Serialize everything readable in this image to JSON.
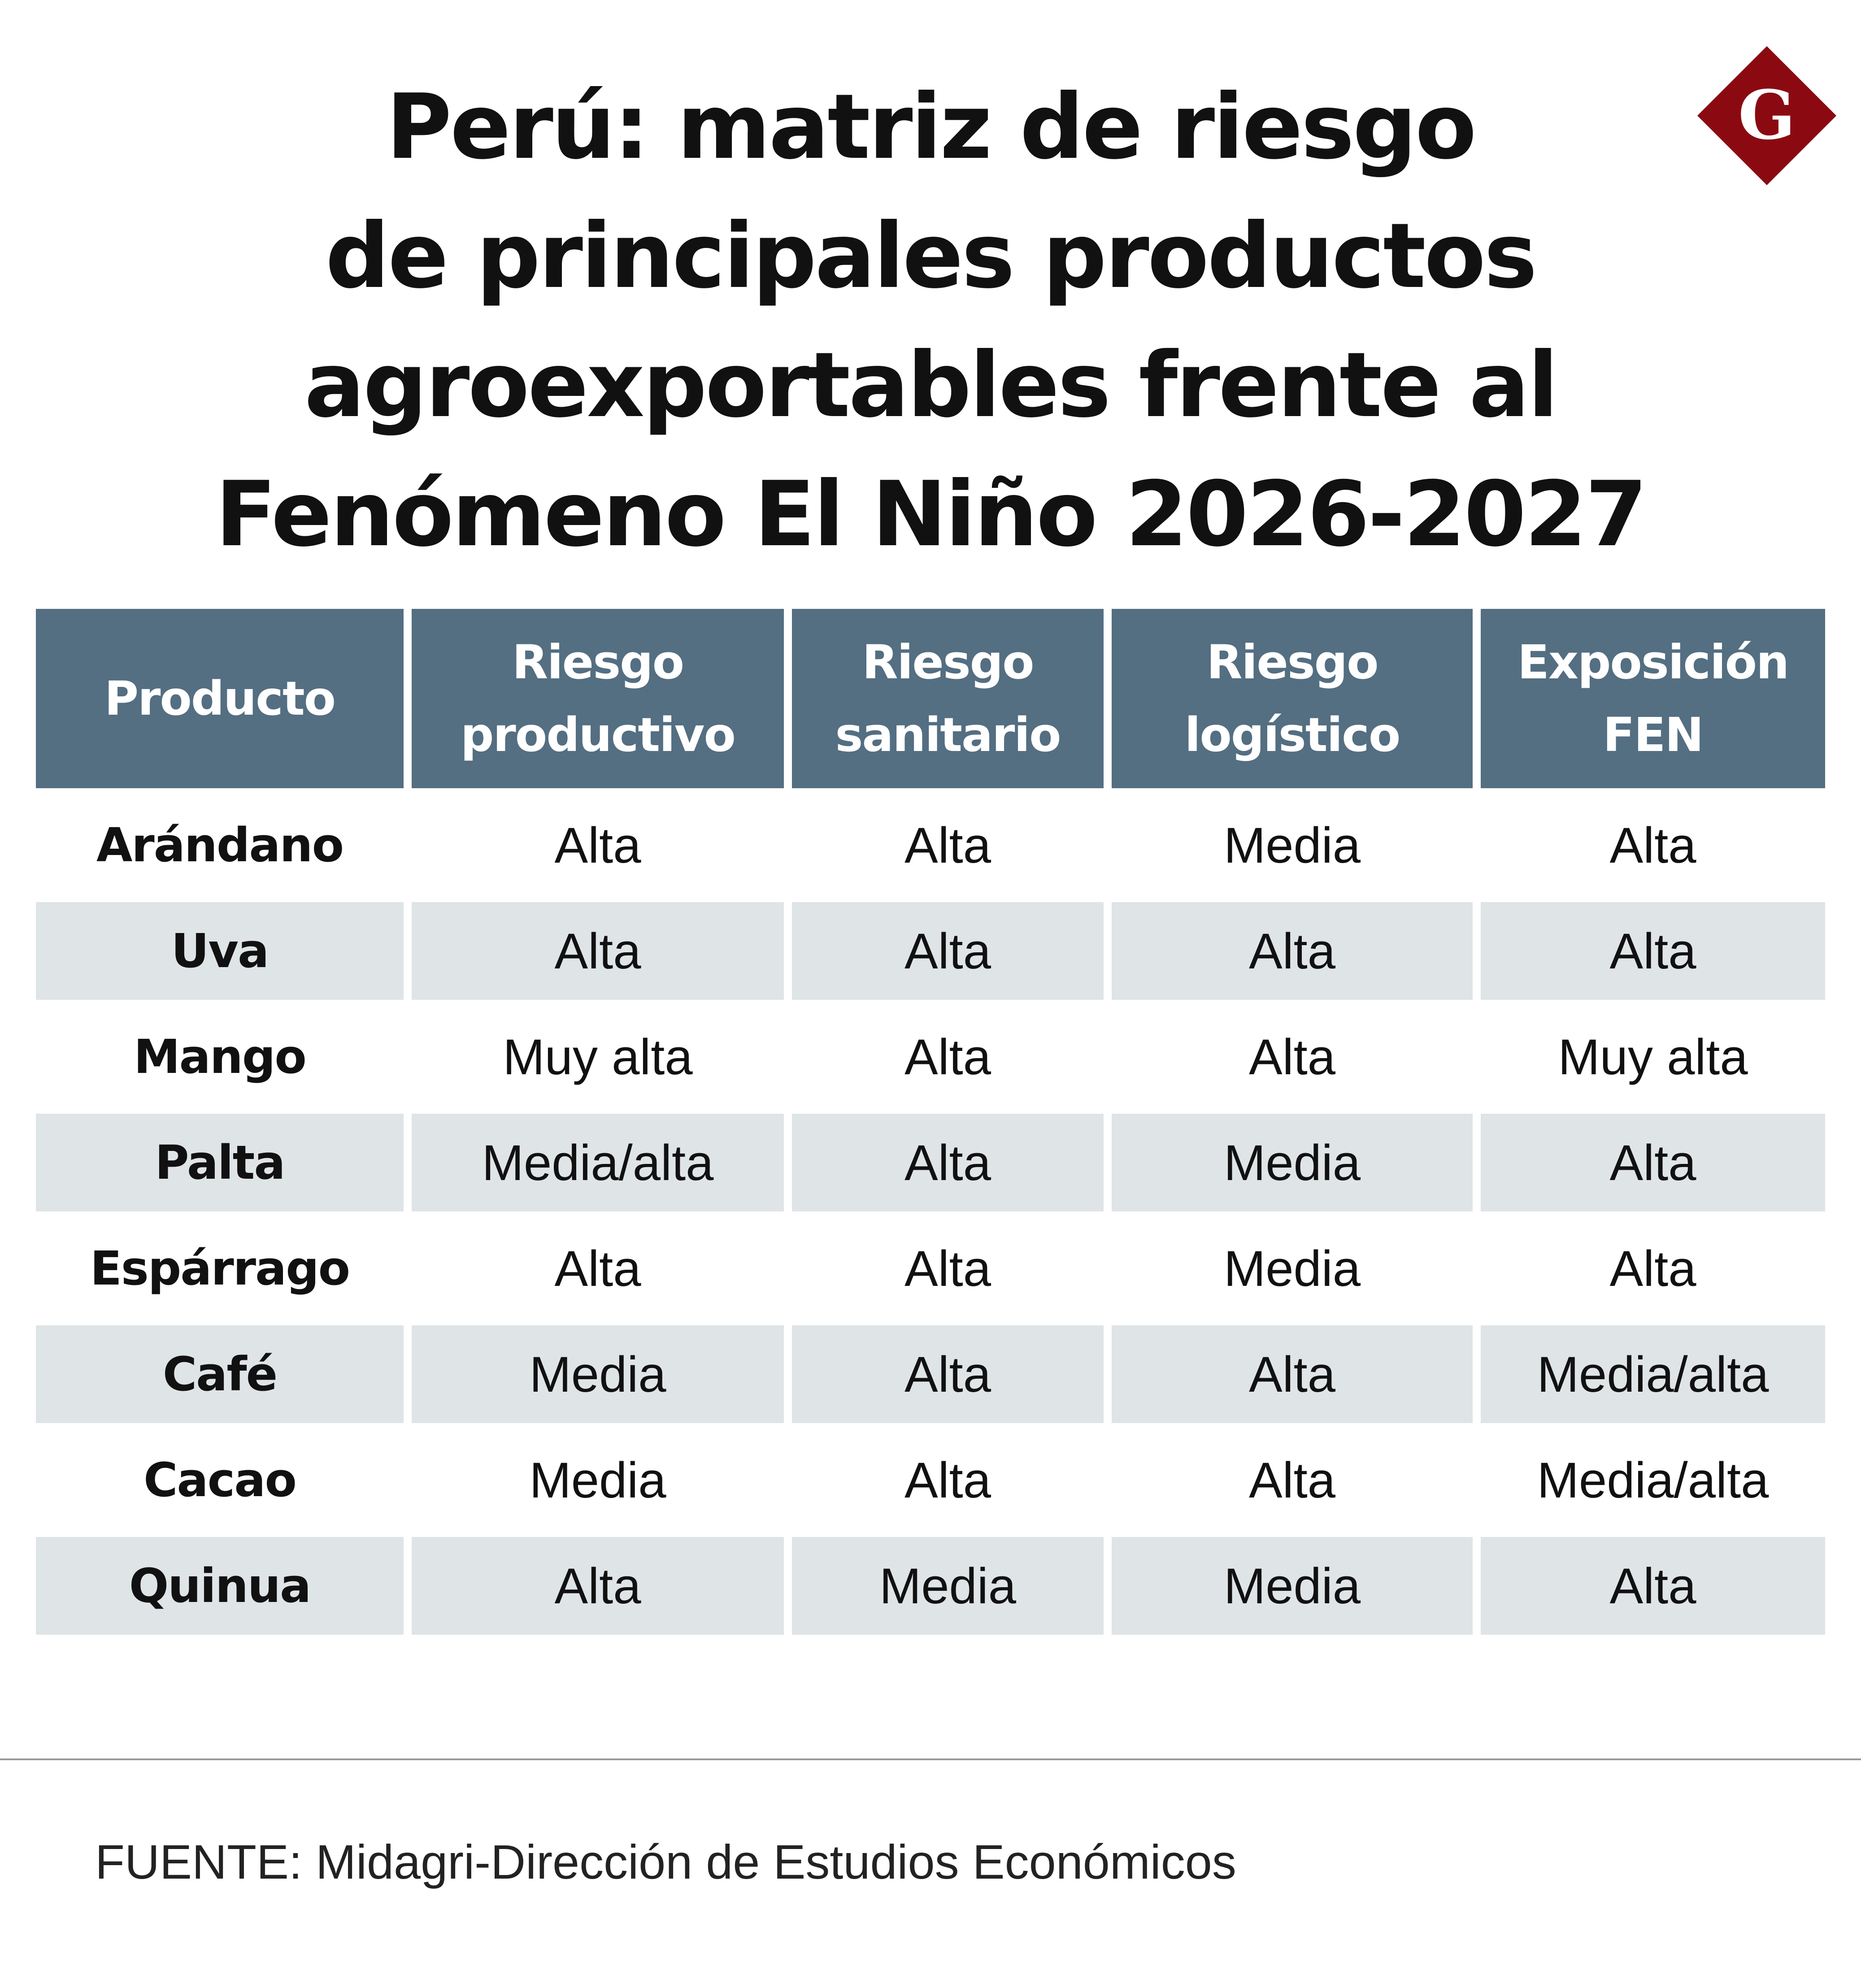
{
  "title_lines": [
    "Perú: matriz de riesgo",
    "de principales productos",
    "agroexportables frente al",
    "Fenómeno El Niño 2026-2027"
  ],
  "logo": {
    "letter": "G",
    "icon": "gestion-logo-icon",
    "color": "#8b0a12"
  },
  "colors": {
    "header_bg": "#546e82",
    "row_shade": "#dfe4e7"
  },
  "chart_data": {
    "type": "table",
    "title": "Perú: matriz de riesgo de principales productos agroexportables frente al Fenómeno El Niño 2026-2027",
    "columns": [
      [
        "Producto"
      ],
      [
        "Riesgo",
        "productivo"
      ],
      [
        "Riesgo",
        "sanitario"
      ],
      [
        "Riesgo",
        "logístico"
      ],
      [
        "Exposición",
        "FEN"
      ]
    ],
    "rows": [
      [
        "Arándano",
        "Alta",
        "Alta",
        "Media",
        "Alta"
      ],
      [
        "Uva",
        "Alta",
        "Alta",
        "Alta",
        "Alta"
      ],
      [
        "Mango",
        "Muy alta",
        "Alta",
        "Alta",
        "Muy alta"
      ],
      [
        "Palta",
        "Media/alta",
        "Alta",
        "Media",
        "Alta"
      ],
      [
        "Espárrago",
        "Alta",
        "Alta",
        "Media",
        "Alta"
      ],
      [
        "Café",
        "Media",
        "Alta",
        "Alta",
        "Media/alta"
      ],
      [
        "Cacao",
        "Media",
        "Alta",
        "Alta",
        "Media/alta"
      ],
      [
        "Quinua",
        "Alta",
        "Media",
        "Media",
        "Alta"
      ]
    ]
  },
  "source": "FUENTE: Midagri-Dirección de Estudios Económicos"
}
